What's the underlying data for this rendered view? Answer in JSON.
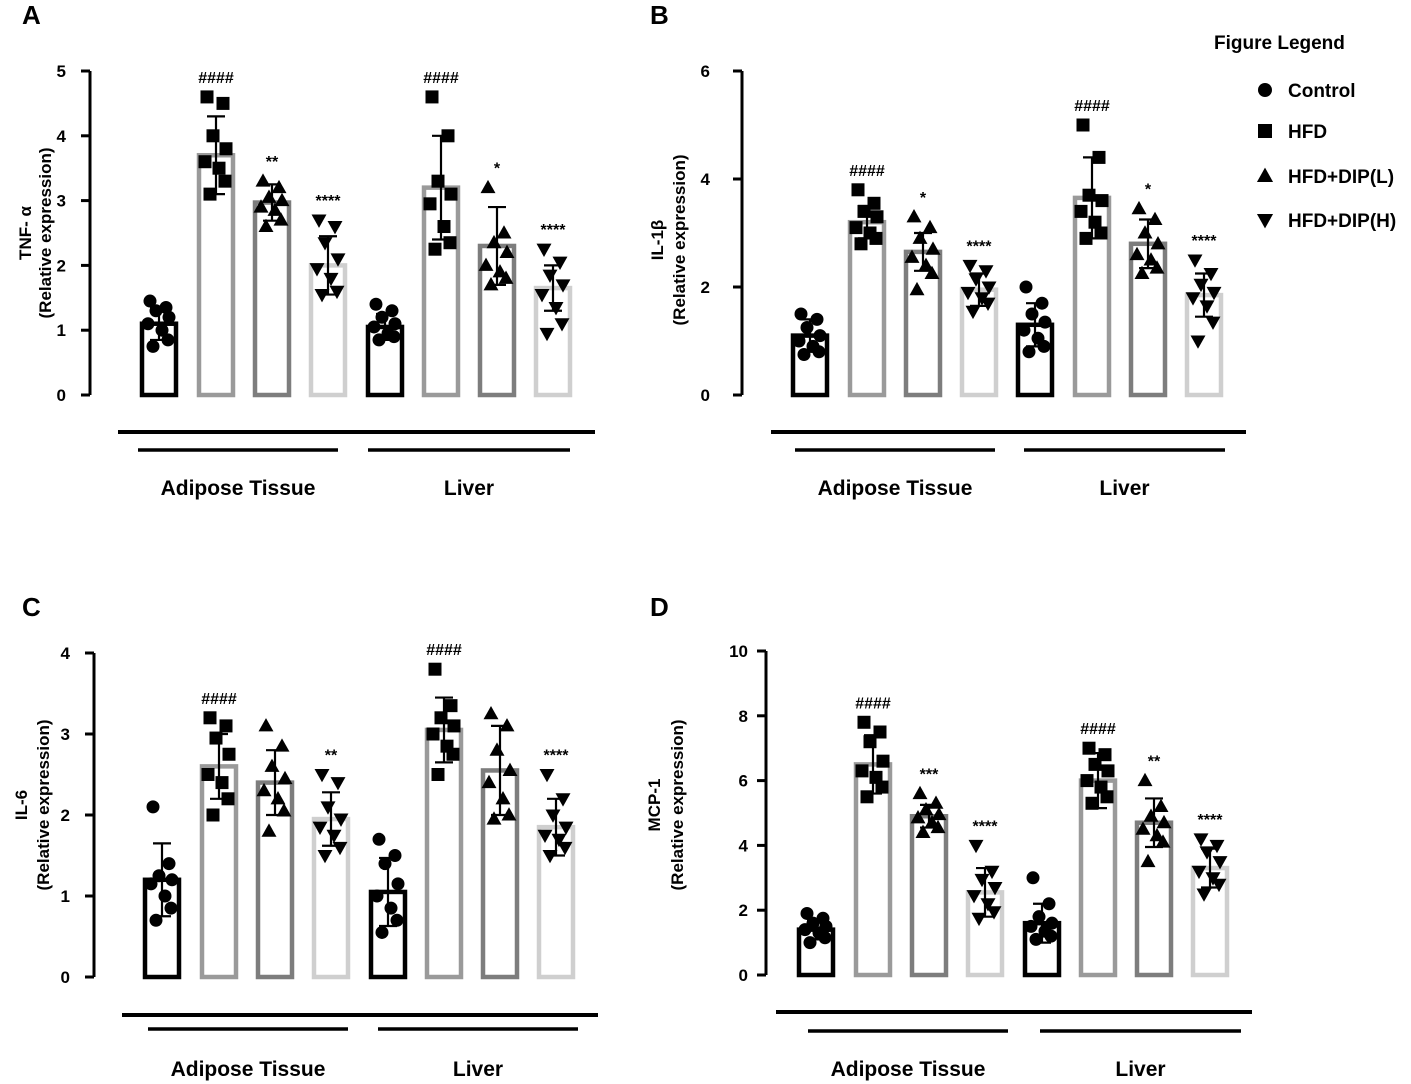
{
  "colors": {
    "Control": "#000000",
    "HFD": "#9a9a9a",
    "HFD+DIP(L)": "#7d7d7d",
    "HFD+DIP(H)": "#cfcfcf",
    "axis": "#000000"
  },
  "legend": {
    "title": "Figure Legend",
    "items": [
      {
        "label": "Control",
        "marker": "circle"
      },
      {
        "label": "HFD",
        "marker": "square"
      },
      {
        "label": "HFD+DIP(L)",
        "marker": "triangle-up"
      },
      {
        "label": "HFD+DIP(H)",
        "marker": "triangle-down"
      }
    ]
  },
  "chart_data": [
    {
      "panel": "A",
      "type": "bar",
      "ylabel": [
        "TNF- α",
        "(Relative expression)"
      ],
      "ylim": [
        0,
        5
      ],
      "yticks": [
        0,
        1,
        2,
        3,
        4,
        5
      ],
      "groups": [
        "Adipose Tissue",
        "Liver"
      ],
      "series_names": [
        "Control",
        "HFD",
        "HFD+DIP(L)",
        "HFD+DIP(H)"
      ],
      "bars": [
        {
          "group": "Adipose Tissue",
          "series": "Control",
          "mean": 1.1,
          "sd": 0.25,
          "sig": "",
          "points": [
            1.45,
            1.35,
            1.3,
            1.2,
            1.1,
            1.0,
            0.85,
            0.75
          ]
        },
        {
          "group": "Adipose Tissue",
          "series": "HFD",
          "mean": 3.7,
          "sd": 0.6,
          "sig": "####",
          "points": [
            4.6,
            4.5,
            4.0,
            3.8,
            3.6,
            3.5,
            3.3,
            3.1
          ]
        },
        {
          "group": "Adipose Tissue",
          "series": "HFD+DIP(L)",
          "mean": 2.97,
          "sd": 0.28,
          "sig": "**",
          "points": [
            3.3,
            3.2,
            3.05,
            3.0,
            2.9,
            2.85,
            2.7,
            2.6
          ]
        },
        {
          "group": "Adipose Tissue",
          "series": "HFD+DIP(H)",
          "mean": 2.0,
          "sd": 0.45,
          "sig": "****",
          "points": [
            2.7,
            2.6,
            2.35,
            2.1,
            1.95,
            1.8,
            1.6,
            1.55
          ]
        },
        {
          "group": "Liver",
          "series": "Control",
          "mean": 1.05,
          "sd": 0.2,
          "sig": "",
          "points": [
            1.4,
            1.3,
            1.2,
            1.1,
            1.05,
            0.95,
            0.9,
            0.85
          ]
        },
        {
          "group": "Liver",
          "series": "HFD",
          "mean": 3.2,
          "sd": 0.8,
          "sig": "####",
          "points": [
            4.6,
            4.0,
            3.3,
            3.1,
            2.95,
            2.6,
            2.35,
            2.25
          ]
        },
        {
          "group": "Liver",
          "series": "HFD+DIP(L)",
          "mean": 2.3,
          "sd": 0.6,
          "sig": "*",
          "points": [
            3.2,
            2.5,
            2.35,
            2.2,
            2.0,
            1.9,
            1.8,
            1.7
          ]
        },
        {
          "group": "Liver",
          "series": "HFD+DIP(H)",
          "mean": 1.65,
          "sd": 0.35,
          "sig": "****",
          "points": [
            2.25,
            2.05,
            1.85,
            1.7,
            1.55,
            1.35,
            1.1,
            0.95
          ]
        }
      ]
    },
    {
      "panel": "B",
      "type": "bar",
      "ylabel": [
        "IL-1β",
        "(Relative expression)"
      ],
      "ylim": [
        0,
        6
      ],
      "yticks": [
        0,
        2,
        4,
        6
      ],
      "groups": [
        "Adipose Tissue",
        "Liver"
      ],
      "series_names": [
        "Control",
        "HFD",
        "HFD+DIP(L)",
        "HFD+DIP(H)"
      ],
      "bars": [
        {
          "group": "Adipose Tissue",
          "series": "Control",
          "mean": 1.1,
          "sd": 0.3,
          "sig": "",
          "points": [
            1.5,
            1.4,
            1.25,
            1.1,
            1.0,
            0.9,
            0.8,
            0.75
          ]
        },
        {
          "group": "Adipose Tissue",
          "series": "HFD",
          "mean": 3.2,
          "sd": 0.3,
          "sig": "####",
          "points": [
            3.8,
            3.55,
            3.4,
            3.3,
            3.1,
            3.0,
            2.9,
            2.8
          ]
        },
        {
          "group": "Adipose Tissue",
          "series": "HFD+DIP(L)",
          "mean": 2.65,
          "sd": 0.35,
          "sig": "*",
          "points": [
            3.3,
            3.1,
            2.9,
            2.7,
            2.55,
            2.4,
            2.25,
            1.95
          ]
        },
        {
          "group": "Adipose Tissue",
          "series": "HFD+DIP(H)",
          "mean": 1.95,
          "sd": 0.3,
          "sig": "****",
          "points": [
            2.4,
            2.3,
            2.15,
            2.0,
            1.9,
            1.8,
            1.7,
            1.55
          ]
        },
        {
          "group": "Liver",
          "series": "Control",
          "mean": 1.3,
          "sd": 0.4,
          "sig": "",
          "points": [
            2.0,
            1.7,
            1.5,
            1.35,
            1.2,
            1.05,
            0.9,
            0.8
          ]
        },
        {
          "group": "Liver",
          "series": "HFD",
          "mean": 3.65,
          "sd": 0.75,
          "sig": "####",
          "points": [
            5.0,
            4.4,
            3.7,
            3.6,
            3.4,
            3.2,
            3.0,
            2.9
          ]
        },
        {
          "group": "Liver",
          "series": "HFD+DIP(L)",
          "mean": 2.8,
          "sd": 0.45,
          "sig": "*",
          "points": [
            3.45,
            3.25,
            3.0,
            2.8,
            2.6,
            2.5,
            2.35,
            2.25
          ]
        },
        {
          "group": "Liver",
          "series": "HFD+DIP(H)",
          "mean": 1.85,
          "sd": 0.4,
          "sig": "****",
          "points": [
            2.5,
            2.25,
            2.05,
            1.9,
            1.8,
            1.65,
            1.35,
            1.0
          ]
        }
      ]
    },
    {
      "panel": "C",
      "type": "bar",
      "ylabel": [
        "IL-6",
        "(Relative expression)"
      ],
      "ylim": [
        0,
        4
      ],
      "yticks": [
        0,
        1,
        2,
        3,
        4
      ],
      "groups": [
        "Adipose Tissue",
        "Liver"
      ],
      "series_names": [
        "Control",
        "HFD",
        "HFD+DIP(L)",
        "HFD+DIP(H)"
      ],
      "bars": [
        {
          "group": "Adipose Tissue",
          "series": "Control",
          "mean": 1.2,
          "sd": 0.45,
          "sig": "",
          "points": [
            2.1,
            1.4,
            1.25,
            1.2,
            1.15,
            1.0,
            0.85,
            0.7
          ]
        },
        {
          "group": "Adipose Tissue",
          "series": "HFD",
          "mean": 2.6,
          "sd": 0.4,
          "sig": "####",
          "points": [
            3.2,
            3.1,
            2.95,
            2.75,
            2.5,
            2.4,
            2.2,
            2.0
          ]
        },
        {
          "group": "Adipose Tissue",
          "series": "HFD+DIP(L)",
          "mean": 2.4,
          "sd": 0.4,
          "sig": "",
          "points": [
            3.1,
            2.85,
            2.6,
            2.45,
            2.3,
            2.2,
            2.05,
            1.8
          ]
        },
        {
          "group": "Adipose Tissue",
          "series": "HFD+DIP(H)",
          "mean": 1.95,
          "sd": 0.33,
          "sig": "**",
          "points": [
            2.5,
            2.4,
            2.1,
            1.95,
            1.85,
            1.75,
            1.6,
            1.5
          ]
        },
        {
          "group": "Liver",
          "series": "Control",
          "mean": 1.05,
          "sd": 0.42,
          "sig": "",
          "points": [
            1.7,
            1.5,
            1.4,
            1.15,
            1.0,
            0.85,
            0.7,
            0.55
          ]
        },
        {
          "group": "Liver",
          "series": "HFD",
          "mean": 3.05,
          "sd": 0.4,
          "sig": "####",
          "points": [
            3.8,
            3.35,
            3.2,
            3.1,
            3.0,
            2.85,
            2.75,
            2.5
          ]
        },
        {
          "group": "Liver",
          "series": "HFD+DIP(L)",
          "mean": 2.55,
          "sd": 0.55,
          "sig": "",
          "points": [
            3.25,
            3.1,
            2.8,
            2.55,
            2.4,
            2.2,
            2.0,
            1.95
          ]
        },
        {
          "group": "Liver",
          "series": "HFD+DIP(H)",
          "mean": 1.85,
          "sd": 0.35,
          "sig": "****",
          "points": [
            2.5,
            2.2,
            2.0,
            1.85,
            1.75,
            1.7,
            1.6,
            1.5
          ]
        }
      ]
    },
    {
      "panel": "D",
      "type": "bar",
      "ylabel": [
        "MCP-1",
        "(Relative expression)"
      ],
      "ylim": [
        0,
        10
      ],
      "yticks": [
        0,
        2,
        4,
        6,
        8,
        10
      ],
      "groups": [
        "Adipose Tissue",
        "Liver"
      ],
      "series_names": [
        "Control",
        "HFD",
        "HFD+DIP(L)",
        "HFD+DIP(H)"
      ],
      "bars": [
        {
          "group": "Adipose Tissue",
          "series": "Control",
          "mean": 1.4,
          "sd": 0.3,
          "sig": "",
          "points": [
            1.9,
            1.75,
            1.6,
            1.5,
            1.4,
            1.3,
            1.15,
            1.0
          ]
        },
        {
          "group": "Adipose Tissue",
          "series": "HFD",
          "mean": 6.5,
          "sd": 0.9,
          "sig": "####",
          "points": [
            7.8,
            7.5,
            7.2,
            6.6,
            6.3,
            6.1,
            5.8,
            5.5
          ]
        },
        {
          "group": "Adipose Tissue",
          "series": "HFD+DIP(L)",
          "mean": 4.9,
          "sd": 0.35,
          "sig": "***",
          "points": [
            5.6,
            5.3,
            5.1,
            4.95,
            4.85,
            4.7,
            4.55,
            4.4
          ]
        },
        {
          "group": "Adipose Tissue",
          "series": "HFD+DIP(H)",
          "mean": 2.55,
          "sd": 0.75,
          "sig": "****",
          "points": [
            4.0,
            3.2,
            2.95,
            2.7,
            2.45,
            2.2,
            1.95,
            1.75
          ]
        },
        {
          "group": "Liver",
          "series": "Control",
          "mean": 1.6,
          "sd": 0.6,
          "sig": "",
          "points": [
            3.0,
            2.2,
            1.8,
            1.6,
            1.5,
            1.35,
            1.2,
            1.1
          ]
        },
        {
          "group": "Liver",
          "series": "HFD",
          "mean": 6.0,
          "sd": 0.85,
          "sig": "####",
          "points": [
            7.0,
            6.8,
            6.5,
            6.3,
            6.0,
            5.8,
            5.5,
            5.3
          ]
        },
        {
          "group": "Liver",
          "series": "HFD+DIP(L)",
          "mean": 4.7,
          "sd": 0.75,
          "sig": "**",
          "points": [
            6.0,
            5.2,
            4.9,
            4.7,
            4.5,
            4.3,
            4.1,
            3.5
          ]
        },
        {
          "group": "Liver",
          "series": "HFD+DIP(H)",
          "mean": 3.3,
          "sd": 0.6,
          "sig": "****",
          "points": [
            4.2,
            4.0,
            3.8,
            3.5,
            3.2,
            3.0,
            2.8,
            2.5
          ]
        }
      ]
    }
  ]
}
